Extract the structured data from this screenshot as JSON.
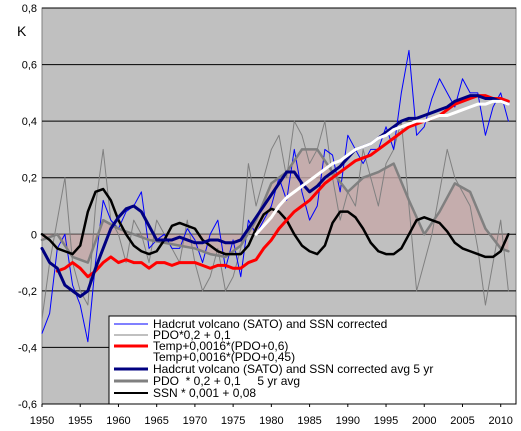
{
  "chart_data": {
    "type": "line",
    "ylabel": "K",
    "xlim": [
      1950,
      2012
    ],
    "ylim": [
      -0.6,
      0.8
    ],
    "xticks": [
      "1950",
      "1955",
      "1960",
      "1965",
      "1970",
      "1975",
      "1980",
      "1985",
      "1990",
      "1995",
      "2000",
      "2005",
      "2010"
    ],
    "yticks": [
      "-0,6",
      "-0,4",
      "-0,2",
      "0",
      "0,2",
      "0,4",
      "0,6",
      "0,8"
    ],
    "grid": true,
    "legend_position": "bottom-right",
    "colors": {
      "plot_bg": "#c0c0c0",
      "pdo_fill": "#c6a8a8",
      "pdo_fill_neg": "#a8a8d0",
      "hadcrut": "#0000ff",
      "pdo_thin": "#808080",
      "temp_red": "#ff0000",
      "temp_white": "#ffffff",
      "hadcrut_avg": "#000080",
      "pdo_avg": "#808080",
      "ssn": "#000000"
    },
    "series": [
      {
        "name": "Hadcrut volcano (SATO) and SSN corrected",
        "style": "thin-blue",
        "x": [
          1950,
          1951,
          1952,
          1953,
          1954,
          1955,
          1956,
          1957,
          1958,
          1959,
          1960,
          1961,
          1962,
          1963,
          1964,
          1965,
          1966,
          1967,
          1968,
          1969,
          1970,
          1971,
          1972,
          1973,
          1974,
          1975,
          1976,
          1977,
          1978,
          1979,
          1980,
          1981,
          1982,
          1983,
          1984,
          1985,
          1986,
          1987,
          1988,
          1989,
          1990,
          1991,
          1992,
          1993,
          1994,
          1995,
          1996,
          1997,
          1998,
          1999,
          2000,
          2001,
          2002,
          2003,
          2004,
          2005,
          2006,
          2007,
          2008,
          2009,
          2010,
          2011
        ],
        "y": [
          -0.35,
          -0.28,
          -0.05,
          0.0,
          -0.18,
          -0.25,
          -0.38,
          -0.1,
          0.12,
          0.05,
          0.02,
          0.08,
          0.1,
          0.15,
          -0.05,
          -0.02,
          0.0,
          -0.05,
          -0.05,
          0.02,
          -0.02,
          -0.1,
          0.0,
          0.05,
          -0.12,
          -0.02,
          -0.15,
          0.05,
          0.0,
          0.05,
          0.1,
          0.2,
          0.12,
          0.3,
          0.15,
          0.05,
          0.1,
          0.3,
          0.28,
          0.15,
          0.35,
          0.3,
          0.25,
          0.3,
          0.3,
          0.38,
          0.3,
          0.5,
          0.65,
          0.35,
          0.38,
          0.48,
          0.55,
          0.5,
          0.45,
          0.55,
          0.5,
          0.5,
          0.35,
          0.45,
          0.5,
          0.4
        ]
      },
      {
        "name": "PDO*0,2 + 0,1",
        "style": "thin-gray",
        "x": [
          1950,
          1951,
          1952,
          1953,
          1954,
          1955,
          1956,
          1957,
          1958,
          1959,
          1960,
          1961,
          1962,
          1963,
          1964,
          1965,
          1966,
          1967,
          1968,
          1969,
          1970,
          1971,
          1972,
          1973,
          1974,
          1975,
          1976,
          1977,
          1978,
          1979,
          1980,
          1981,
          1982,
          1983,
          1984,
          1985,
          1986,
          1987,
          1988,
          1989,
          1990,
          1991,
          1992,
          1993,
          1994,
          1995,
          1996,
          1997,
          1998,
          1999,
          2000,
          2001,
          2002,
          2003,
          2004,
          2005,
          2006,
          2007,
          2008,
          2009,
          2010,
          2011
        ],
        "y": [
          -0.3,
          -0.1,
          0.05,
          0.2,
          -0.1,
          -0.2,
          -0.25,
          0.1,
          0.3,
          0.05,
          0.0,
          -0.1,
          0.05,
          0.0,
          -0.1,
          0.05,
          0.0,
          -0.05,
          -0.1,
          0.05,
          -0.1,
          -0.2,
          -0.15,
          -0.05,
          -0.2,
          -0.15,
          -0.05,
          0.25,
          0.1,
          0.2,
          0.3,
          0.35,
          0.2,
          0.4,
          0.35,
          0.25,
          0.3,
          0.4,
          0.2,
          0.05,
          0.15,
          0.1,
          0.3,
          0.2,
          0.1,
          0.25,
          0.3,
          0.4,
          0.1,
          -0.2,
          -0.1,
          0.0,
          0.15,
          0.3,
          0.2,
          0.15,
          0.1,
          -0.05,
          -0.25,
          -0.1,
          0.05,
          -0.2
        ]
      },
      {
        "name": "Temp+0,0016*(PDO+0,6)",
        "style": "thick-red",
        "x": [
          1952,
          1953,
          1954,
          1955,
          1956,
          1957,
          1958,
          1959,
          1960,
          1961,
          1962,
          1963,
          1964,
          1965,
          1966,
          1967,
          1968,
          1969,
          1970,
          1971,
          1972,
          1973,
          1974,
          1975,
          1976,
          1977,
          1978,
          1979,
          1980,
          1981,
          1982,
          1983,
          1984,
          1985,
          1986,
          1987,
          1988,
          1989,
          1990,
          1991,
          1992,
          1993,
          1994,
          1995,
          1996,
          1997,
          1998,
          1999,
          2000,
          2001,
          2002,
          2003,
          2004,
          2005,
          2006,
          2007,
          2008,
          2009,
          2010,
          2011
        ],
        "y": [
          -0.13,
          -0.12,
          -0.1,
          -0.12,
          -0.15,
          -0.13,
          -0.1,
          -0.08,
          -0.1,
          -0.09,
          -0.1,
          -0.1,
          -0.12,
          -0.1,
          -0.1,
          -0.11,
          -0.1,
          -0.1,
          -0.1,
          -0.11,
          -0.12,
          -0.11,
          -0.11,
          -0.12,
          -0.12,
          -0.1,
          -0.09,
          -0.05,
          -0.02,
          0.02,
          0.05,
          0.08,
          0.1,
          0.12,
          0.15,
          0.18,
          0.2,
          0.22,
          0.24,
          0.26,
          0.27,
          0.28,
          0.3,
          0.32,
          0.34,
          0.36,
          0.38,
          0.39,
          0.4,
          0.41,
          0.42,
          0.44,
          0.46,
          0.47,
          0.48,
          0.49,
          0.49,
          0.48,
          0.48,
          0.47
        ]
      },
      {
        "name": "Temp+0,0016*(PDO+0,45)",
        "style": "thick-white",
        "x": [
          1978,
          1979,
          1980,
          1981,
          1982,
          1983,
          1984,
          1985,
          1986,
          1987,
          1988,
          1989,
          1990,
          1991,
          1992,
          1993,
          1994,
          1995,
          1996,
          1997,
          1998,
          1999,
          2000,
          2001,
          2002,
          2003,
          2004,
          2005,
          2006,
          2007,
          2008,
          2009,
          2010,
          2011
        ],
        "y": [
          0.0,
          0.03,
          0.06,
          0.1,
          0.13,
          0.15,
          0.17,
          0.19,
          0.21,
          0.23,
          0.25,
          0.26,
          0.28,
          0.3,
          0.31,
          0.32,
          0.34,
          0.35,
          0.37,
          0.38,
          0.39,
          0.4,
          0.4,
          0.41,
          0.42,
          0.42,
          0.43,
          0.44,
          0.45,
          0.46,
          0.46,
          0.47,
          0.47,
          0.46
        ]
      },
      {
        "name": "Hadcrut volcano (SATO) and SSN corrected avg 5 yr",
        "style": "thick-navy",
        "x": [
          1950,
          1951,
          1952,
          1953,
          1954,
          1955,
          1956,
          1957,
          1958,
          1959,
          1960,
          1961,
          1962,
          1963,
          1964,
          1965,
          1966,
          1967,
          1968,
          1969,
          1970,
          1971,
          1972,
          1973,
          1974,
          1975,
          1976,
          1977,
          1978,
          1979,
          1980,
          1981,
          1982,
          1983,
          1984,
          1985,
          1986,
          1987,
          1988,
          1989,
          1990,
          1991,
          1992,
          1993,
          1994,
          1995,
          1996,
          1997,
          1998,
          1999,
          2000,
          2001,
          2002,
          2003,
          2004,
          2005,
          2006,
          2007,
          2008,
          2009,
          2010,
          2011
        ],
        "y": [
          -0.05,
          -0.1,
          -0.12,
          -0.18,
          -0.2,
          -0.22,
          -0.2,
          -0.12,
          -0.05,
          0.02,
          0.06,
          0.09,
          0.1,
          0.08,
          0.03,
          -0.02,
          -0.02,
          -0.02,
          -0.01,
          -0.02,
          -0.03,
          -0.03,
          -0.02,
          -0.02,
          -0.03,
          -0.03,
          -0.02,
          0.02,
          0.06,
          0.1,
          0.14,
          0.18,
          0.22,
          0.22,
          0.18,
          0.15,
          0.17,
          0.2,
          0.22,
          0.24,
          0.27,
          0.3,
          0.31,
          0.32,
          0.34,
          0.36,
          0.38,
          0.4,
          0.41,
          0.41,
          0.42,
          0.43,
          0.44,
          0.45,
          0.47,
          0.48,
          0.49,
          0.49,
          0.48,
          0.48,
          0.47,
          0.46
        ]
      },
      {
        "name": "PDO  * 0,2 + 0,1     5 yr avg",
        "style": "thick-gray",
        "x": [
          1950,
          1952,
          1954,
          1956,
          1958,
          1960,
          1962,
          1964,
          1966,
          1968,
          1970,
          1972,
          1974,
          1976,
          1978,
          1980,
          1982,
          1984,
          1986,
          1988,
          1990,
          1992,
          1994,
          1996,
          1998,
          2000,
          2002,
          2004,
          2006,
          2008,
          2010,
          2011
        ],
        "y": [
          -0.02,
          0.0,
          -0.08,
          -0.1,
          0.05,
          0.02,
          0.0,
          -0.02,
          -0.03,
          -0.04,
          -0.05,
          -0.07,
          -0.08,
          -0.04,
          0.05,
          0.18,
          0.22,
          0.3,
          0.3,
          0.22,
          0.15,
          0.2,
          0.22,
          0.25,
          0.12,
          0.0,
          0.08,
          0.18,
          0.15,
          0.02,
          -0.05,
          -0.06
        ]
      },
      {
        "name": "SSN * 0,001 + 0,08",
        "style": "thick-black",
        "x": [
          1950,
          1951,
          1952,
          1953,
          1954,
          1955,
          1956,
          1957,
          1958,
          1959,
          1960,
          1961,
          1962,
          1963,
          1964,
          1965,
          1966,
          1967,
          1968,
          1969,
          1970,
          1971,
          1972,
          1973,
          1974,
          1975,
          1976,
          1977,
          1978,
          1979,
          1980,
          1981,
          1982,
          1983,
          1984,
          1985,
          1986,
          1987,
          1988,
          1989,
          1990,
          1991,
          1992,
          1993,
          1994,
          1995,
          1996,
          1997,
          1998,
          1999,
          2000,
          2001,
          2002,
          2003,
          2004,
          2005,
          2006,
          2007,
          2008,
          2009,
          2010,
          2011
        ],
        "y": [
          0.0,
          -0.02,
          -0.05,
          -0.06,
          -0.07,
          -0.04,
          0.08,
          0.15,
          0.16,
          0.12,
          0.05,
          0.0,
          -0.04,
          -0.06,
          -0.07,
          -0.06,
          -0.02,
          0.03,
          0.04,
          0.03,
          0.02,
          -0.02,
          -0.04,
          -0.06,
          -0.07,
          -0.07,
          -0.07,
          -0.04,
          0.02,
          0.07,
          0.09,
          0.08,
          0.05,
          0.0,
          -0.04,
          -0.06,
          -0.07,
          -0.04,
          0.04,
          0.08,
          0.08,
          0.06,
          0.02,
          -0.03,
          -0.06,
          -0.07,
          -0.07,
          -0.05,
          0.0,
          0.05,
          0.06,
          0.05,
          0.04,
          0.01,
          -0.03,
          -0.05,
          -0.06,
          -0.07,
          -0.08,
          -0.08,
          -0.06,
          0.0
        ]
      }
    ]
  }
}
